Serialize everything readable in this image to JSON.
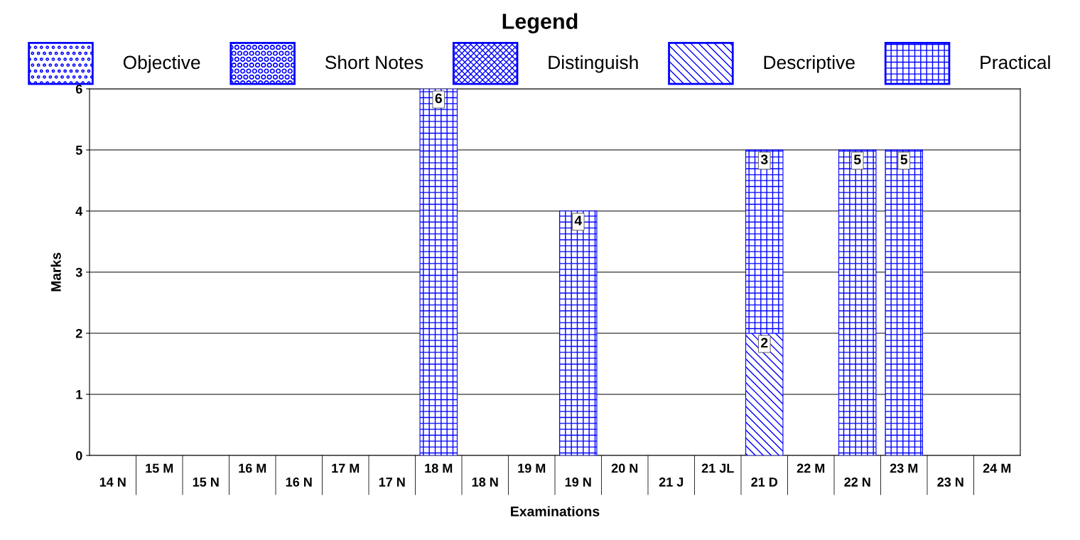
{
  "chart_data": {
    "type": "bar",
    "stacked": true,
    "xlabel": "Examinations",
    "ylabel": "Marks",
    "legend_title": "Legend",
    "legend": "top",
    "categories": [
      "14 N",
      "15 M",
      "15 N",
      "16 M",
      "16 N",
      "17 M",
      "17 N",
      "18 M",
      "18 N",
      "19 M",
      "19 N",
      "20 N",
      "21 J",
      "21 JL",
      "21 D",
      "22 M",
      "22 N",
      "23 M",
      "23 N",
      "24 M"
    ],
    "series": [
      {
        "name": "Objective",
        "color": "#0000ff",
        "values": [
          null,
          null,
          null,
          null,
          null,
          null,
          null,
          null,
          null,
          null,
          null,
          null,
          null,
          null,
          null,
          null,
          null,
          null,
          null,
          null
        ]
      },
      {
        "name": "Short Notes",
        "color": "#0000ff",
        "values": [
          null,
          null,
          null,
          null,
          null,
          null,
          null,
          null,
          null,
          null,
          null,
          null,
          null,
          null,
          null,
          null,
          null,
          null,
          null,
          null
        ]
      },
      {
        "name": "Distinguish",
        "color": "#0000ff",
        "values": [
          null,
          null,
          null,
          null,
          null,
          null,
          null,
          null,
          null,
          null,
          null,
          null,
          null,
          null,
          null,
          null,
          null,
          null,
          null,
          null
        ]
      },
      {
        "name": "Descriptive",
        "color": "#0000ff",
        "values": [
          null,
          null,
          null,
          null,
          null,
          null,
          null,
          null,
          null,
          null,
          null,
          null,
          null,
          null,
          2,
          null,
          null,
          null,
          null,
          null
        ]
      },
      {
        "name": "Practical",
        "color": "#0000ff",
        "values": [
          null,
          null,
          null,
          null,
          null,
          null,
          null,
          6,
          null,
          null,
          4,
          null,
          null,
          null,
          3,
          null,
          5,
          5,
          null,
          null
        ]
      }
    ],
    "ylim": [
      0,
      6
    ],
    "yticks": [
      0,
      1,
      2,
      3,
      4,
      5,
      6
    ],
    "grid": "y",
    "data_labels": true
  }
}
